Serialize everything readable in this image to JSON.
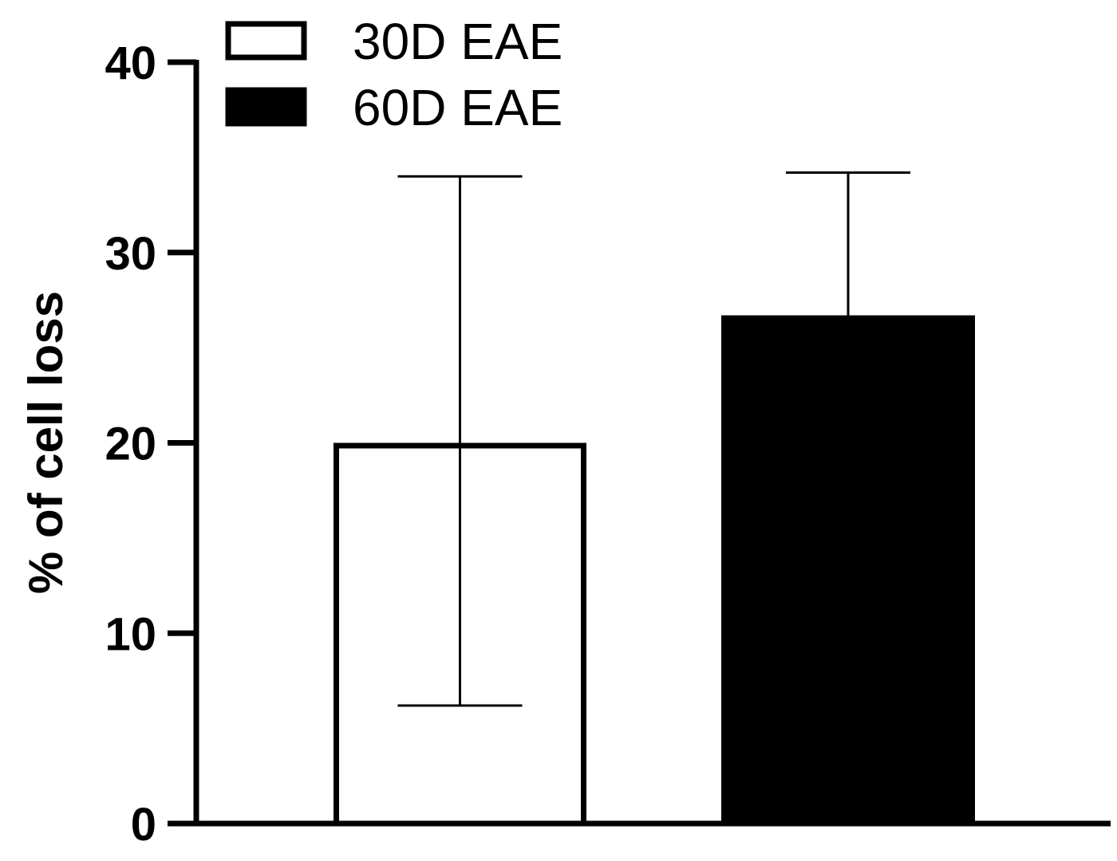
{
  "chart_data": {
    "type": "bar",
    "ylabel": "% of cell loss",
    "xlabel": "",
    "ylim": [
      0,
      40
    ],
    "yticks": [
      0,
      10,
      20,
      30,
      40
    ],
    "grid": false,
    "legend_position": "top-left",
    "series": [
      {
        "name": "30D EAE",
        "value": 20,
        "error_upper": 34,
        "error_lower": 6.2,
        "fill": "#ffffff",
        "stroke": "#000000"
      },
      {
        "name": "60D EAE",
        "value": 26.7,
        "error_upper": 34.2,
        "fill": "#000000",
        "stroke": "#000000"
      }
    ]
  }
}
